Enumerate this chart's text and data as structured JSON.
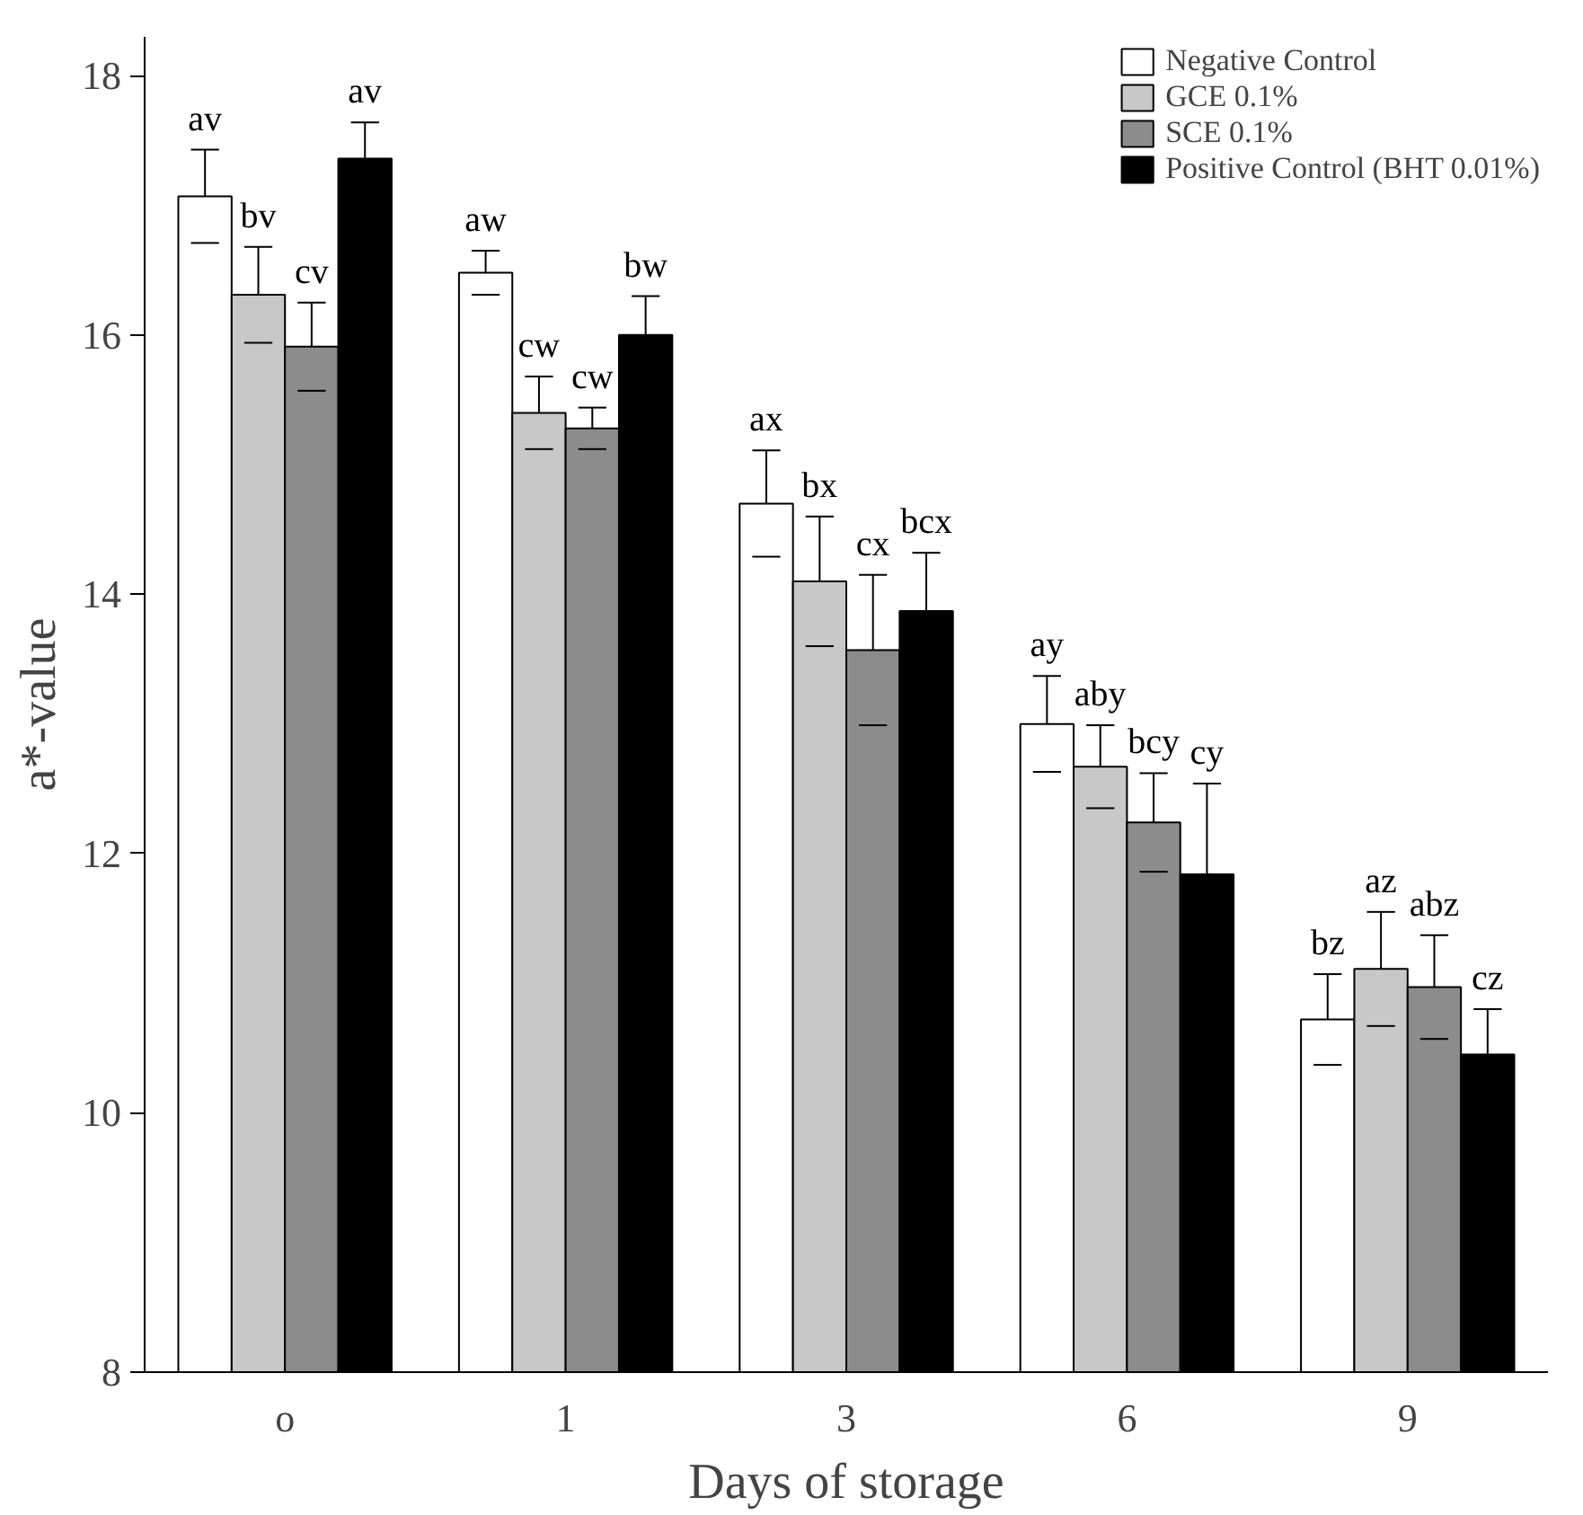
{
  "chart_data": {
    "type": "bar",
    "xlabel": "Days of storage",
    "ylabel": "a*-value",
    "categories": [
      "o",
      "1",
      "3",
      "6",
      "9"
    ],
    "ylim": [
      8,
      18.3
    ],
    "yticks": [
      8,
      10,
      12,
      14,
      16,
      18
    ],
    "grid": false,
    "legend": "top right",
    "series": [
      {
        "name": "Negative Control",
        "color": "#ffffff",
        "values": [
          17.07,
          16.48,
          14.7,
          13.0,
          10.72
        ],
        "errors": [
          0.36,
          0.17,
          0.41,
          0.37,
          0.35
        ],
        "value_labels": [
          "av",
          "aw",
          "ax",
          "ay",
          "bz"
        ]
      },
      {
        "name": "GCE 0.1%",
        "color": "#c8c8c8",
        "values": [
          16.31,
          15.4,
          14.1,
          12.67,
          11.11
        ],
        "errors": [
          0.37,
          0.28,
          0.5,
          0.32,
          0.44
        ],
        "value_labels": [
          "bv",
          "cw",
          "bx",
          "aby",
          "az"
        ]
      },
      {
        "name": "SCE 0.1%",
        "color": "#8c8c8c",
        "values": [
          15.91,
          15.28,
          13.57,
          12.24,
          10.97
        ],
        "errors": [
          0.34,
          0.16,
          0.58,
          0.38,
          0.4
        ],
        "value_labels": [
          "cv",
          "cw",
          "cx",
          "bcy",
          "abz"
        ]
      },
      {
        "name": "Positive Control (BHT 0.01%)",
        "color": "#000000",
        "values": [
          17.36,
          16.0,
          13.87,
          11.84,
          10.45
        ],
        "errors": [
          0.28,
          0.3,
          0.45,
          0.7,
          0.35
        ],
        "value_labels": [
          "av",
          "bw",
          "bcx",
          "cy",
          "cz"
        ]
      }
    ]
  }
}
